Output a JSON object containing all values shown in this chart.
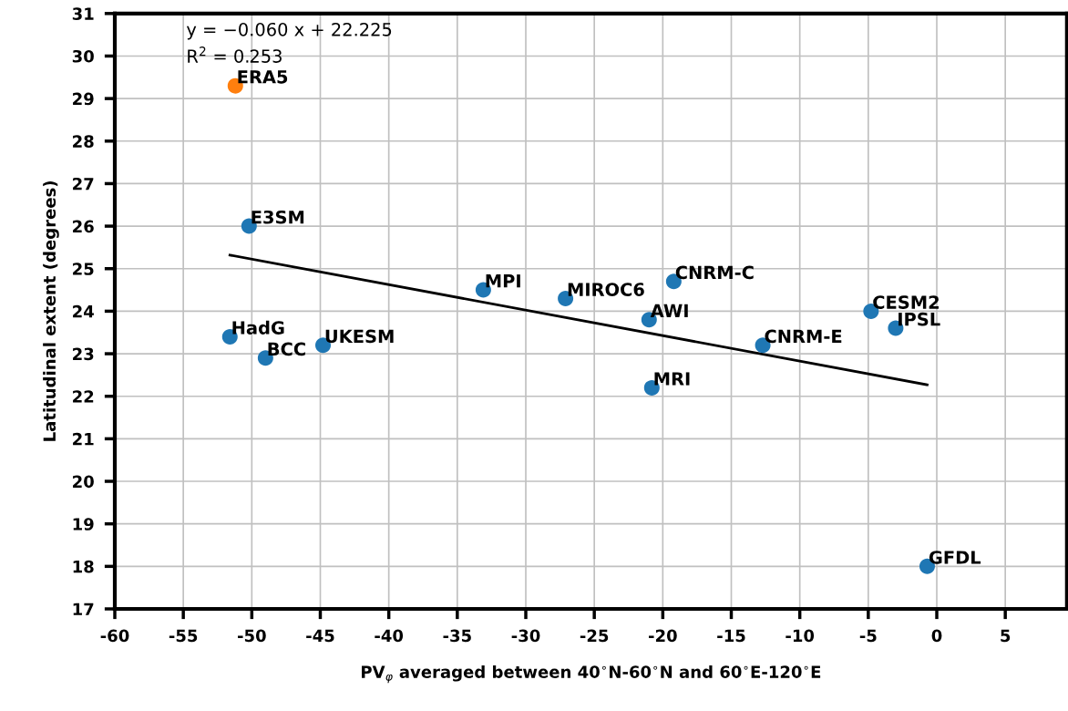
{
  "chart_data": {
    "type": "scatter",
    "xlabel": "PV$_{φ}$ averaged between 40$^{∘}$N-60$^{∘}$N and 60$^{∘}$E-120$^{∘}$E",
    "ylabel": "Latitudinal extent (degrees)",
    "series": [
      {
        "color": "#1f77b4",
        "x": [
          -50.2,
          -51.6,
          -49.0,
          -44.8,
          -33.1,
          -27.1,
          -19.2,
          -21.0,
          -20.8,
          -12.7,
          -4.8,
          -3.0,
          -0.7
        ],
        "values": [
          26.0,
          23.4,
          22.9,
          23.2,
          24.5,
          24.3,
          24.7,
          23.8,
          22.2,
          23.2,
          24.0,
          23.6,
          18.0
        ]
      },
      {
        "color": "#ff7f0e",
        "x": [
          -51.2
        ],
        "values": [
          29.3
        ]
      },
      {
        "type": "line",
        "marker": "none",
        "color": "#000000",
        "x": [
          -51.6,
          -0.7
        ],
        "values": [
          25.32,
          22.27
        ]
      }
    ],
    "annotations": [
      "y = −0.060 x + 22.225",
      "R$^{2}$ = 0.253",
      {
        "text": "E3SM",
        "x": -50.2,
        "y": 26.0
      },
      {
        "text": "HadG",
        "x": -51.6,
        "y": 23.4
      },
      {
        "text": "BCC",
        "x": -49.0,
        "y": 22.9
      },
      {
        "text": "UKESM",
        "x": -44.8,
        "y": 23.2
      },
      {
        "text": "MPI",
        "x": -33.1,
        "y": 24.5
      },
      {
        "text": "MIROC6",
        "x": -27.1,
        "y": 24.3
      },
      {
        "text": "CNRM-C",
        "x": -19.2,
        "y": 24.7
      },
      {
        "text": "AWI",
        "x": -21.0,
        "y": 23.8
      },
      {
        "text": "MRI",
        "x": -20.8,
        "y": 22.2
      },
      {
        "text": "CNRM-E",
        "x": -12.7,
        "y": 23.2
      },
      {
        "text": "CESM2",
        "x": -4.8,
        "y": 24.0
      },
      {
        "text": "IPSL",
        "x": -3.0,
        "y": 23.6
      },
      {
        "text": "GFDL",
        "x": -0.7,
        "y": 18.0
      },
      {
        "text": "ERA5",
        "x": -51.2,
        "y": 29.3
      }
    ],
    "xlim": [
      -60,
      9.5
    ],
    "ylim": [
      17,
      31
    ],
    "xticks": [
      -60,
      -55,
      -50,
      -45,
      -40,
      -35,
      -30,
      -25,
      -20,
      -15,
      -10,
      -5,
      0,
      5
    ],
    "yticks": [
      17,
      18,
      19,
      20,
      21,
      22,
      23,
      24,
      25,
      26,
      27,
      28,
      29,
      30,
      31
    ],
    "grid": true,
    "marker": "circle"
  }
}
